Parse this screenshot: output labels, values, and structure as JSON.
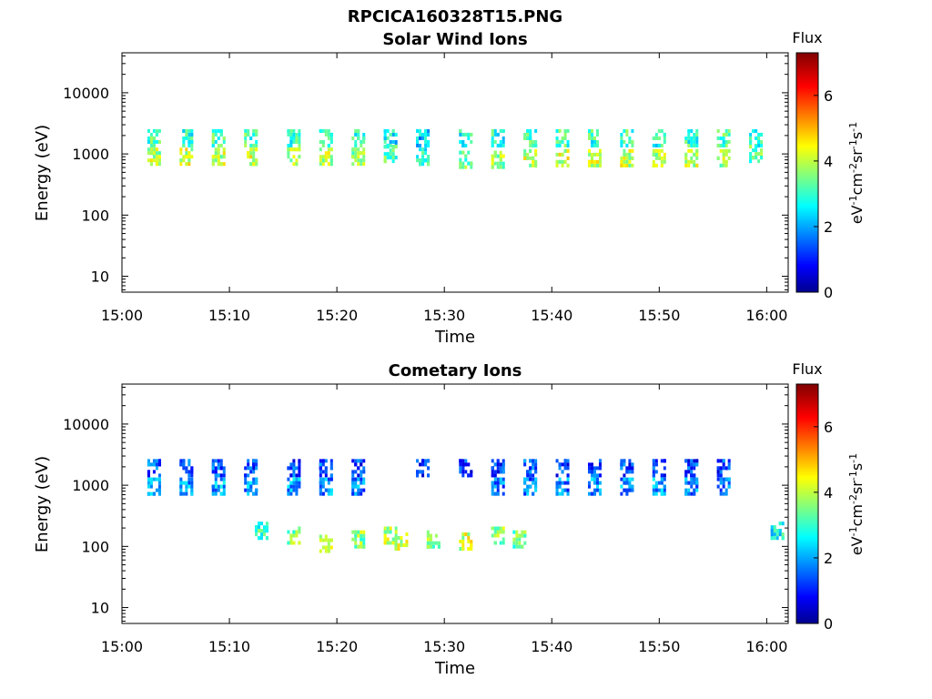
{
  "figure": {
    "title": "RPCICA160328T15.PNG"
  },
  "colorbar": {
    "label": "Flux",
    "unit_prefix": "eV",
    "unit_parts": [
      "-1",
      "cm",
      "-2",
      "sr",
      "-1",
      "s",
      "-1"
    ],
    "range": [
      0,
      7.3
    ],
    "ticks": [
      0,
      2,
      4,
      6
    ],
    "colormap": "jet"
  },
  "chart_data": [
    {
      "type": "heatmap",
      "title": "Solar Wind Ions",
      "xlabel": "Time",
      "ylabel": "Energy (eV)",
      "x_unit": "HH:MM",
      "xlim": [
        "15:00",
        "16:02"
      ],
      "x_ticks": [
        "15:00",
        "15:10",
        "15:20",
        "15:30",
        "15:40",
        "15:50",
        "16:00"
      ],
      "ylim": [
        5.5,
        45000
      ],
      "y_scale": "log",
      "y_ticks": [
        10,
        100,
        1000,
        10000
      ],
      "y_tick_labels": [
        "10",
        "100",
        "1000",
        "10000"
      ],
      "clusters": [
        {
          "t": "15:03",
          "e": 1800,
          "v": 3.3
        },
        {
          "t": "15:03",
          "e": 900,
          "v": 4.0
        },
        {
          "t": "15:06",
          "e": 1800,
          "v": 3.0
        },
        {
          "t": "15:06",
          "e": 900,
          "v": 4.2
        },
        {
          "t": "15:09",
          "e": 1800,
          "v": 3.3
        },
        {
          "t": "15:09",
          "e": 900,
          "v": 4.1
        },
        {
          "t": "15:12",
          "e": 1800,
          "v": 3.2
        },
        {
          "t": "15:12",
          "e": 900,
          "v": 4.2
        },
        {
          "t": "15:16",
          "e": 1800,
          "v": 3.1
        },
        {
          "t": "15:16",
          "e": 900,
          "v": 4.1
        },
        {
          "t": "15:19",
          "e": 1800,
          "v": 3.2
        },
        {
          "t": "15:19",
          "e": 900,
          "v": 4.0
        },
        {
          "t": "15:22",
          "e": 1800,
          "v": 3.0
        },
        {
          "t": "15:22",
          "e": 900,
          "v": 3.8
        },
        {
          "t": "15:25",
          "e": 1800,
          "v": 2.7
        },
        {
          "t": "15:25",
          "e": 1000,
          "v": 3.3
        },
        {
          "t": "15:28",
          "e": 1800,
          "v": 2.4
        },
        {
          "t": "15:28",
          "e": 900,
          "v": 2.9
        },
        {
          "t": "15:32",
          "e": 1800,
          "v": 2.9
        },
        {
          "t": "15:32",
          "e": 800,
          "v": 3.5
        },
        {
          "t": "15:35",
          "e": 1800,
          "v": 3.0
        },
        {
          "t": "15:35",
          "e": 800,
          "v": 3.8
        },
        {
          "t": "15:38",
          "e": 1800,
          "v": 3.1
        },
        {
          "t": "15:38",
          "e": 850,
          "v": 4.1
        },
        {
          "t": "15:41",
          "e": 1800,
          "v": 3.3
        },
        {
          "t": "15:41",
          "e": 850,
          "v": 4.2
        },
        {
          "t": "15:44",
          "e": 1800,
          "v": 3.1
        },
        {
          "t": "15:44",
          "e": 850,
          "v": 4.2
        },
        {
          "t": "15:47",
          "e": 1800,
          "v": 3.2
        },
        {
          "t": "15:47",
          "e": 850,
          "v": 4.1
        },
        {
          "t": "15:50",
          "e": 1800,
          "v": 2.9
        },
        {
          "t": "15:50",
          "e": 850,
          "v": 3.9
        },
        {
          "t": "15:53",
          "e": 1800,
          "v": 3.1
        },
        {
          "t": "15:53",
          "e": 850,
          "v": 4.1
        },
        {
          "t": "15:56",
          "e": 1800,
          "v": 3.2
        },
        {
          "t": "15:56",
          "e": 850,
          "v": 4.0
        },
        {
          "t": "15:59",
          "e": 1800,
          "v": 3.0
        },
        {
          "t": "15:59",
          "e": 1000,
          "v": 3.4
        }
      ]
    },
    {
      "type": "heatmap",
      "title": "Cometary Ions",
      "xlabel": "Time",
      "ylabel": "Energy (eV)",
      "x_unit": "HH:MM",
      "xlim": [
        "15:00",
        "16:02"
      ],
      "x_ticks": [
        "15:00",
        "15:10",
        "15:20",
        "15:30",
        "15:40",
        "15:50",
        "16:00"
      ],
      "ylim": [
        5.5,
        45000
      ],
      "y_scale": "log",
      "y_ticks": [
        10,
        100,
        1000,
        10000
      ],
      "y_tick_labels": [
        "10",
        "100",
        "1000",
        "10000"
      ],
      "clusters": [
        {
          "t": "15:03",
          "e": 1900,
          "v": 1.5
        },
        {
          "t": "15:03",
          "e": 950,
          "v": 2.4
        },
        {
          "t": "15:06",
          "e": 1900,
          "v": 1.4
        },
        {
          "t": "15:06",
          "e": 950,
          "v": 2.0
        },
        {
          "t": "15:09",
          "e": 1900,
          "v": 1.5
        },
        {
          "t": "15:09",
          "e": 950,
          "v": 2.1
        },
        {
          "t": "15:12",
          "e": 1900,
          "v": 1.3
        },
        {
          "t": "15:12",
          "e": 950,
          "v": 2.0
        },
        {
          "t": "15:16",
          "e": 1900,
          "v": 1.4
        },
        {
          "t": "15:16",
          "e": 950,
          "v": 2.1
        },
        {
          "t": "15:19",
          "e": 1900,
          "v": 1.4
        },
        {
          "t": "15:19",
          "e": 950,
          "v": 1.9
        },
        {
          "t": "15:22",
          "e": 1900,
          "v": 1.3
        },
        {
          "t": "15:22",
          "e": 950,
          "v": 1.8
        },
        {
          "t": "15:28",
          "e": 1900,
          "v": 1.2
        },
        {
          "t": "15:32",
          "e": 1900,
          "v": 1.3
        },
        {
          "t": "15:35",
          "e": 1900,
          "v": 1.3
        },
        {
          "t": "15:35",
          "e": 950,
          "v": 1.7
        },
        {
          "t": "15:38",
          "e": 1900,
          "v": 1.4
        },
        {
          "t": "15:38",
          "e": 950,
          "v": 1.8
        },
        {
          "t": "15:41",
          "e": 1900,
          "v": 1.3
        },
        {
          "t": "15:41",
          "e": 950,
          "v": 1.8
        },
        {
          "t": "15:44",
          "e": 1900,
          "v": 1.4
        },
        {
          "t": "15:44",
          "e": 950,
          "v": 2.0
        },
        {
          "t": "15:47",
          "e": 1900,
          "v": 1.3
        },
        {
          "t": "15:47",
          "e": 950,
          "v": 1.9
        },
        {
          "t": "15:50",
          "e": 1900,
          "v": 1.4
        },
        {
          "t": "15:50",
          "e": 950,
          "v": 2.1
        },
        {
          "t": "15:53",
          "e": 1900,
          "v": 1.3
        },
        {
          "t": "15:53",
          "e": 950,
          "v": 1.8
        },
        {
          "t": "15:56",
          "e": 1900,
          "v": 1.3
        },
        {
          "t": "15:56",
          "e": 950,
          "v": 1.9
        },
        {
          "t": "15:13",
          "e": 180,
          "v": 3.2
        },
        {
          "t": "15:16",
          "e": 150,
          "v": 3.6
        },
        {
          "t": "15:19",
          "e": 110,
          "v": 4.0
        },
        {
          "t": "15:22",
          "e": 130,
          "v": 3.7
        },
        {
          "t": "15:25",
          "e": 150,
          "v": 4.0
        },
        {
          "t": "15:26",
          "e": 120,
          "v": 4.1
        },
        {
          "t": "15:29",
          "e": 130,
          "v": 3.6
        },
        {
          "t": "15:32",
          "e": 120,
          "v": 4.2
        },
        {
          "t": "15:35",
          "e": 150,
          "v": 3.7
        },
        {
          "t": "15:37",
          "e": 130,
          "v": 3.5
        },
        {
          "t": "16:01",
          "e": 180,
          "v": 2.8
        }
      ]
    }
  ]
}
